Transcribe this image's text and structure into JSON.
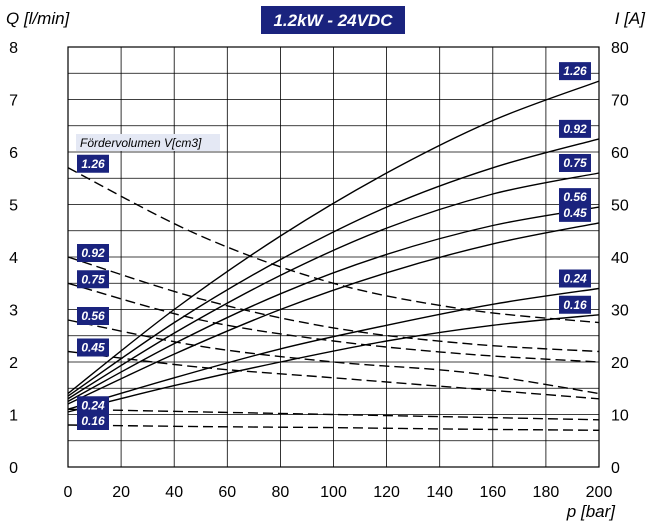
{
  "chart_data": {
    "type": "line",
    "title": "1.2kW - 24VDC",
    "xlabel": "p [bar]",
    "ylabel_left": "Q [l/min]",
    "ylabel_right": "I [A]",
    "annotation": "Fördervolumen V[cm3]",
    "x_ticks": [
      "0",
      "20",
      "40",
      "60",
      "80",
      "100",
      "120",
      "140",
      "160",
      "180",
      "200"
    ],
    "y_left_ticks": [
      "0",
      "1",
      "2",
      "3",
      "4",
      "5",
      "6",
      "7",
      "8"
    ],
    "y_right_ticks": [
      "0",
      "10",
      "20",
      "30",
      "40",
      "50",
      "60",
      "70",
      "80"
    ],
    "xlim": [
      0,
      200
    ],
    "ylim_left": [
      0,
      8
    ],
    "ylim_right": [
      0,
      80
    ],
    "grid": true,
    "colors": {
      "line": "#000000",
      "badge": "#1a237e",
      "note_bg": "#e4e8f4"
    },
    "flow_series": [
      {
        "name": "1.26",
        "x": [
          0,
          50,
          100,
          150,
          200
        ],
        "values": [
          5.7,
          4.4,
          3.5,
          3.0,
          2.75
        ]
      },
      {
        "name": "0.92",
        "x": [
          0,
          50,
          100,
          150,
          200
        ],
        "values": [
          4.0,
          3.2,
          2.65,
          2.35,
          2.2
        ]
      },
      {
        "name": "0.75",
        "x": [
          0,
          50,
          100,
          150,
          200
        ],
        "values": [
          3.5,
          2.8,
          2.4,
          2.15,
          2.0
        ]
      },
      {
        "name": "0.56",
        "x": [
          0,
          50,
          100,
          150,
          200
        ],
        "values": [
          2.8,
          2.3,
          2.0,
          1.8,
          1.4
        ]
      },
      {
        "name": "0.45",
        "x": [
          0,
          50,
          100,
          150,
          200
        ],
        "values": [
          2.2,
          1.9,
          1.7,
          1.5,
          1.3
        ]
      },
      {
        "name": "0.24",
        "x": [
          0,
          50,
          100,
          150,
          200
        ],
        "values": [
          1.1,
          1.05,
          1.0,
          0.95,
          0.9
        ]
      },
      {
        "name": "0.16",
        "x": [
          0,
          50,
          100,
          150,
          200
        ],
        "values": [
          0.8,
          0.77,
          0.75,
          0.72,
          0.7
        ]
      }
    ],
    "current_series": [
      {
        "name": "1.26",
        "x": [
          0,
          40,
          80,
          120,
          160,
          200
        ],
        "values": [
          14,
          30,
          44,
          56,
          66,
          73.5
        ]
      },
      {
        "name": "0.92",
        "x": [
          0,
          40,
          80,
          120,
          160,
          200
        ],
        "values": [
          13.5,
          27.5,
          39.5,
          49.5,
          57,
          62.5
        ]
      },
      {
        "name": "0.75",
        "x": [
          0,
          40,
          80,
          120,
          160,
          200
        ],
        "values": [
          13,
          25.5,
          36.5,
          45.5,
          52,
          56
        ]
      },
      {
        "name": "0.56",
        "x": [
          0,
          40,
          80,
          120,
          160,
          200
        ],
        "values": [
          12.5,
          23.5,
          33,
          40.5,
          46,
          49.5
        ]
      },
      {
        "name": "0.45",
        "x": [
          0,
          40,
          80,
          120,
          160,
          200
        ],
        "values": [
          12,
          21.5,
          30,
          37,
          42.5,
          46.5
        ]
      },
      {
        "name": "0.24",
        "x": [
          0,
          40,
          80,
          120,
          160,
          200
        ],
        "values": [
          11,
          17,
          22.5,
          27,
          31,
          34
        ]
      },
      {
        "name": "0.16",
        "x": [
          0,
          40,
          80,
          120,
          160,
          200
        ],
        "values": [
          10.5,
          15.5,
          20,
          24,
          27,
          29
        ]
      }
    ]
  }
}
